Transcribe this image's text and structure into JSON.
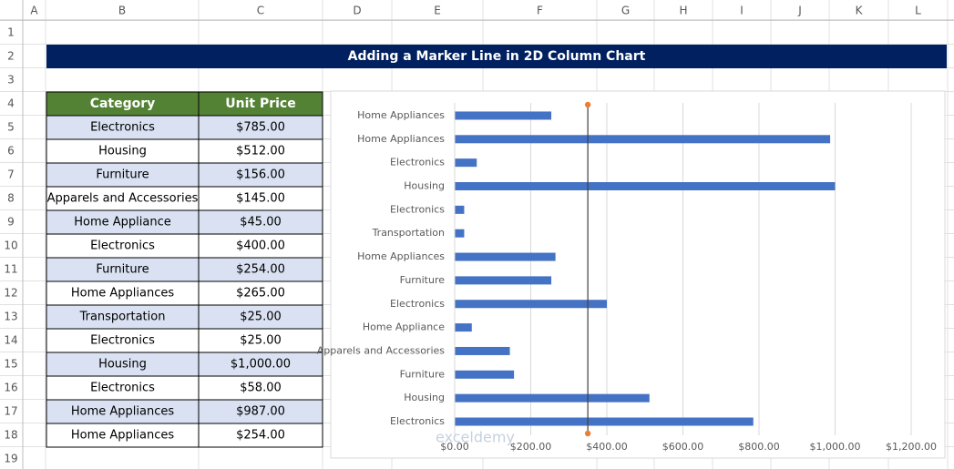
{
  "column_headers": [
    "A",
    "B",
    "C",
    "D",
    "E",
    "F",
    "G",
    "H",
    "I",
    "J",
    "K",
    "L"
  ],
  "row_headers": [
    1,
    2,
    3,
    4,
    5,
    6,
    7,
    8,
    9,
    10,
    11,
    12,
    13,
    14,
    15,
    16,
    17,
    18,
    19
  ],
  "title": "Adding a Marker Line in 2D Column Chart",
  "table": {
    "header": [
      "Category",
      "Unit Price"
    ],
    "rows": [
      [
        "Electronics",
        "$785.00"
      ],
      [
        "Housing",
        "$512.00"
      ],
      [
        "Furniture",
        "$156.00"
      ],
      [
        "Apparels and Accessories",
        "$145.00"
      ],
      [
        "Home Appliance",
        "$45.00"
      ],
      [
        "Electronics",
        "$400.00"
      ],
      [
        "Furniture",
        "$254.00"
      ],
      [
        "Home Appliances",
        "$265.00"
      ],
      [
        "Transportation",
        "$25.00"
      ],
      [
        "Electronics",
        "$25.00"
      ],
      [
        "Housing",
        "$1,000.00"
      ],
      [
        "Electronics",
        "$58.00"
      ],
      [
        "Home Appliances",
        "$987.00"
      ],
      [
        "Home Appliances",
        "$254.00"
      ]
    ]
  },
  "chart_data": {
    "type": "hbar",
    "categories": [
      "Electronics",
      "Housing",
      "Furniture",
      "Apparels and Accessories",
      "Home Appliance",
      "Electronics",
      "Furniture",
      "Home Appliances",
      "Transportation",
      "Electronics",
      "Housing",
      "Electronics",
      "Home Appliances",
      "Home Appliances"
    ],
    "values": [
      785,
      512,
      156,
      145,
      45,
      400,
      254,
      265,
      25,
      25,
      1000,
      58,
      987,
      254
    ],
    "color": "#4472c4",
    "marker_line": 350,
    "marker_color": "#ed7d31",
    "xlim": [
      0,
      1200
    ],
    "xticks": [
      {
        "value": 0,
        "label": "$0.00"
      },
      {
        "value": 200,
        "label": "$200.00"
      },
      {
        "value": 400,
        "label": "$400.00"
      },
      {
        "value": 600,
        "label": "$600.00"
      },
      {
        "value": 800,
        "label": "$800.00"
      },
      {
        "value": 1000,
        "label": "$1,000.00"
      },
      {
        "value": 1200,
        "label": "$1,200.00"
      }
    ],
    "grid": true
  },
  "watermark": "exceldemy"
}
